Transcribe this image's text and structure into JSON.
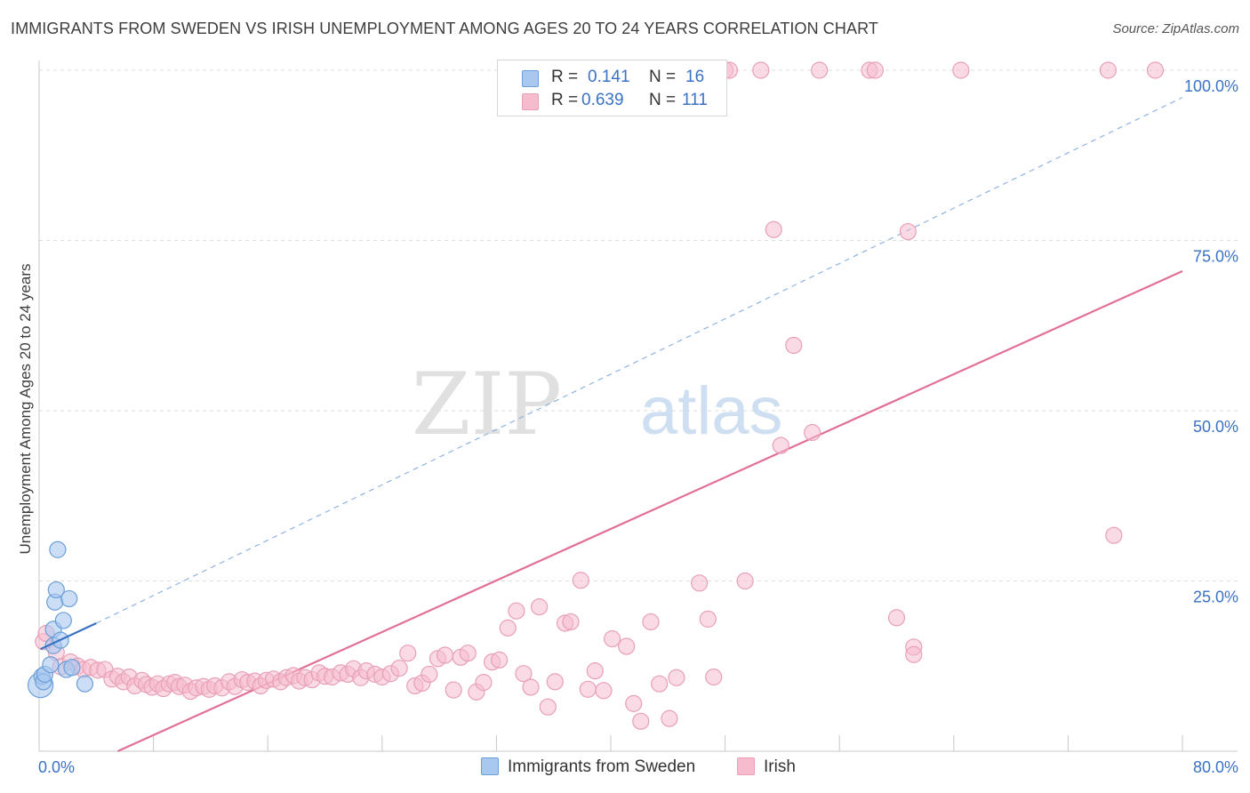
{
  "header": {
    "title": "IMMIGRANTS FROM SWEDEN VS IRISH UNEMPLOYMENT AMONG AGES 20 TO 24 YEARS CORRELATION CHART",
    "source": "Source: ZipAtlas.com"
  },
  "watermark": {
    "part1": "ZIP",
    "part2": "atlas"
  },
  "legend": {
    "rows": [
      {
        "r_label": "R =",
        "r_value": "0.141",
        "n_label": "N =",
        "n_value": "16"
      },
      {
        "r_label": "R =",
        "r_value": "0.639",
        "n_label": "N =",
        "n_value": "111"
      }
    ]
  },
  "bottom_legend": {
    "series1": "Immigrants from Sweden",
    "series2": "Irish"
  },
  "colors": {
    "blue_fill": "#a9c8f0",
    "blue_stroke": "#6a9fd8",
    "blue_line": "#3a72c4",
    "pink_fill": "#f6bccd",
    "pink_stroke": "#e8a0b6",
    "pink_line": "#e26f97",
    "tick_text": "#3a72c4",
    "grid": "#dcdcdc"
  },
  "chart_data": {
    "type": "scatter",
    "title": "IMMIGRANTS FROM SWEDEN VS IRISH UNEMPLOYMENT AMONG AGES 20 TO 24 YEARS CORRELATION CHART",
    "xlabel": "",
    "ylabel": "Unemployment Among Ages 20 to 24 years",
    "xlim": [
      0,
      80
    ],
    "ylim": [
      0,
      100
    ],
    "x_tick_labels": [
      "0.0%",
      "80.0%"
    ],
    "y_ticks": [
      25,
      50,
      75,
      100
    ],
    "y_tick_labels": [
      "25.0%",
      "50.0%",
      "75.0%",
      "100.0%"
    ],
    "legend_position": "top-center",
    "series": [
      {
        "name": "Immigrants from Sweden",
        "R": 0.141,
        "N": 16,
        "points": [
          [
            0.1,
            9.7
          ],
          [
            0.2,
            11.0
          ],
          [
            0.3,
            10.2
          ],
          [
            0.4,
            11.3
          ],
          [
            0.8,
            12.7
          ],
          [
            1.0,
            17.9
          ],
          [
            1.0,
            15.5
          ],
          [
            1.1,
            21.9
          ],
          [
            1.2,
            23.7
          ],
          [
            1.3,
            29.6
          ],
          [
            1.5,
            16.3
          ],
          [
            1.7,
            19.2
          ],
          [
            1.9,
            12.0
          ],
          [
            2.1,
            22.4
          ],
          [
            2.3,
            12.3
          ],
          [
            3.2,
            9.9
          ]
        ],
        "trend_solid": [
          [
            0.1,
            15.0
          ],
          [
            4.0,
            18.8
          ]
        ],
        "trend_dashed": [
          [
            4.0,
            18.8
          ],
          [
            80.0,
            96.0
          ]
        ]
      },
      {
        "name": "Irish",
        "R": 0.639,
        "N": 111,
        "points": [
          [
            0.3,
            16.1
          ],
          [
            0.5,
            17.3
          ],
          [
            1.2,
            14.5
          ],
          [
            1.5,
            12.4
          ],
          [
            2.2,
            13.1
          ],
          [
            2.7,
            12.5
          ],
          [
            3.1,
            12.0
          ],
          [
            3.6,
            12.3
          ],
          [
            4.1,
            11.9
          ],
          [
            4.6,
            12.0
          ],
          [
            5.1,
            10.6
          ],
          [
            5.5,
            11.0
          ],
          [
            5.9,
            10.2
          ],
          [
            6.3,
            10.9
          ],
          [
            6.7,
            9.6
          ],
          [
            7.2,
            10.4
          ],
          [
            7.5,
            9.8
          ],
          [
            7.9,
            9.4
          ],
          [
            8.3,
            9.9
          ],
          [
            8.7,
            9.2
          ],
          [
            9.1,
            9.9
          ],
          [
            9.5,
            10.1
          ],
          [
            9.8,
            9.5
          ],
          [
            10.2,
            9.7
          ],
          [
            10.6,
            8.8
          ],
          [
            11.0,
            9.3
          ],
          [
            11.5,
            9.5
          ],
          [
            11.9,
            9.1
          ],
          [
            12.3,
            9.6
          ],
          [
            12.8,
            9.3
          ],
          [
            13.3,
            10.2
          ],
          [
            13.7,
            9.5
          ],
          [
            14.2,
            10.5
          ],
          [
            14.6,
            10.1
          ],
          [
            15.1,
            10.3
          ],
          [
            15.5,
            9.6
          ],
          [
            15.9,
            10.4
          ],
          [
            16.4,
            10.6
          ],
          [
            16.9,
            10.2
          ],
          [
            17.3,
            10.8
          ],
          [
            17.8,
            11.1
          ],
          [
            18.2,
            10.3
          ],
          [
            18.6,
            10.8
          ],
          [
            19.1,
            10.5
          ],
          [
            19.6,
            11.5
          ],
          [
            20.0,
            11.0
          ],
          [
            20.5,
            10.9
          ],
          [
            21.1,
            11.5
          ],
          [
            21.6,
            11.3
          ],
          [
            22.0,
            12.1
          ],
          [
            22.5,
            10.8
          ],
          [
            22.9,
            11.8
          ],
          [
            23.5,
            11.3
          ],
          [
            24.0,
            10.9
          ],
          [
            24.6,
            11.4
          ],
          [
            25.2,
            12.2
          ],
          [
            25.8,
            14.4
          ],
          [
            26.3,
            9.6
          ],
          [
            26.8,
            10.0
          ],
          [
            27.3,
            11.3
          ],
          [
            27.9,
            13.6
          ],
          [
            28.4,
            14.1
          ],
          [
            29.0,
            9.0
          ],
          [
            29.5,
            13.8
          ],
          [
            30.0,
            14.4
          ],
          [
            30.6,
            8.7
          ],
          [
            31.1,
            10.1
          ],
          [
            31.7,
            13.1
          ],
          [
            32.2,
            13.4
          ],
          [
            32.8,
            18.1
          ],
          [
            33.4,
            20.6
          ],
          [
            33.9,
            11.4
          ],
          [
            34.4,
            9.4
          ],
          [
            35.0,
            21.2
          ],
          [
            35.6,
            6.5
          ],
          [
            36.1,
            10.2
          ],
          [
            36.8,
            18.8
          ],
          [
            37.2,
            19.0
          ],
          [
            37.9,
            25.1
          ],
          [
            38.4,
            9.1
          ],
          [
            38.9,
            11.8
          ],
          [
            39.5,
            8.9
          ],
          [
            40.1,
            16.5
          ],
          [
            41.1,
            15.4
          ],
          [
            41.6,
            7.0
          ],
          [
            42.1,
            4.4
          ],
          [
            42.8,
            19.0
          ],
          [
            43.4,
            9.9
          ],
          [
            44.1,
            4.8
          ],
          [
            44.6,
            10.8
          ],
          [
            46.2,
            24.7
          ],
          [
            46.8,
            19.4
          ],
          [
            47.2,
            10.9
          ],
          [
            49.4,
            25.0
          ],
          [
            51.4,
            76.6
          ],
          [
            51.9,
            44.9
          ],
          [
            52.8,
            59.6
          ],
          [
            54.1,
            46.8
          ],
          [
            60.8,
            76.3
          ],
          [
            75.2,
            31.7
          ],
          [
            60.0,
            19.6
          ],
          [
            61.2,
            15.3
          ],
          [
            61.2,
            14.2
          ],
          [
            48.0,
            100.0
          ],
          [
            48.3,
            100.0
          ],
          [
            50.5,
            100.0
          ],
          [
            54.6,
            100.0
          ],
          [
            58.1,
            100.0
          ],
          [
            58.5,
            100.0
          ],
          [
            64.5,
            100.0
          ],
          [
            74.8,
            100.0
          ],
          [
            78.1,
            100.0
          ]
        ],
        "trend": [
          [
            5.5,
            0.0
          ],
          [
            80.0,
            70.5
          ]
        ]
      }
    ]
  }
}
